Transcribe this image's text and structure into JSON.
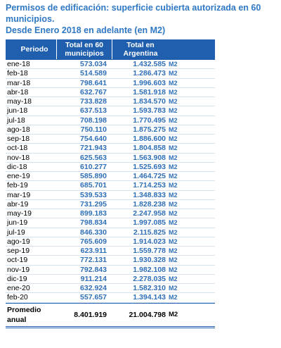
{
  "title": {
    "line1": "Permisos de edificación: superficie cubierta autorizada en 60 municipios.",
    "line2": "Desde Enero 2018 en adelante (en M2)"
  },
  "table": {
    "headers": {
      "periodo": "Periodo",
      "municipios": "Total en 60 municipios",
      "argentina": "Total en Argentina"
    },
    "rows": [
      {
        "periodo": "ene-18",
        "municipios": "573.034",
        "argentina": "1.432.585",
        "unit": "M2"
      },
      {
        "periodo": "feb-18",
        "municipios": "514.589",
        "argentina": "1.286.473",
        "unit": "M2"
      },
      {
        "periodo": "mar-18",
        "municipios": "798.641",
        "argentina": "1.996.603",
        "unit": "M2"
      },
      {
        "periodo": "abr-18",
        "municipios": "632.767",
        "argentina": "1.581.918",
        "unit": "M2"
      },
      {
        "periodo": "may-18",
        "municipios": "733.828",
        "argentina": "1.834.570",
        "unit": "M2"
      },
      {
        "periodo": "jun-18",
        "municipios": "637.513",
        "argentina": "1.593.783",
        "unit": "M2"
      },
      {
        "periodo": "jul-18",
        "municipios": "708.198",
        "argentina": "1.770.495",
        "unit": "M2"
      },
      {
        "periodo": "ago-18",
        "municipios": "750.110",
        "argentina": "1.875.275",
        "unit": "M2"
      },
      {
        "periodo": "sep-18",
        "municipios": "754.640",
        "argentina": "1.886.600",
        "unit": "M2"
      },
      {
        "periodo": "oct-18",
        "municipios": "721.943",
        "argentina": "1.804.858",
        "unit": "M2"
      },
      {
        "periodo": "nov-18",
        "municipios": "625.563",
        "argentina": "1.563.908",
        "unit": "M2"
      },
      {
        "periodo": "dic-18",
        "municipios": "610.277",
        "argentina": "1.525.693",
        "unit": "M2"
      },
      {
        "periodo": "ene-19",
        "municipios": "585.890",
        "argentina": "1.464.725",
        "unit": "M2"
      },
      {
        "periodo": "feb-19",
        "municipios": "685.701",
        "argentina": "1.714.253",
        "unit": "M2"
      },
      {
        "periodo": "mar-19",
        "municipios": "539.533",
        "argentina": "1.348.833",
        "unit": "M2"
      },
      {
        "periodo": "abr-19",
        "municipios": "731.295",
        "argentina": "1.828.238",
        "unit": "M2"
      },
      {
        "periodo": "may-19",
        "municipios": "899.183",
        "argentina": "2.247.958",
        "unit": "M2"
      },
      {
        "periodo": "jun-19",
        "municipios": "798.834",
        "argentina": "1.997.085",
        "unit": "M2"
      },
      {
        "periodo": "jul-19",
        "municipios": "846.330",
        "argentina": "2.115.825",
        "unit": "M2"
      },
      {
        "periodo": "ago-19",
        "municipios": "765.609",
        "argentina": "1.914.023",
        "unit": "M2"
      },
      {
        "periodo": "sep-19",
        "municipios": "623.911",
        "argentina": "1.559.778",
        "unit": "M2"
      },
      {
        "periodo": "oct-19",
        "municipios": "772.131",
        "argentina": "1.930.328",
        "unit": "M2"
      },
      {
        "periodo": "nov-19",
        "municipios": "792.843",
        "argentina": "1.982.108",
        "unit": "M2"
      },
      {
        "periodo": "dic-19",
        "municipios": "911.214",
        "argentina": "2.278.035",
        "unit": "M2"
      },
      {
        "periodo": "ene-20",
        "municipios": "632.924",
        "argentina": "1.582.310",
        "unit": "M2"
      },
      {
        "periodo": "feb-20",
        "municipios": "557.657",
        "argentina": "1.394.143",
        "unit": "M2"
      }
    ],
    "footer": {
      "label": "Promedio anual",
      "municipios": "8.401.919",
      "argentina": "21.004.798",
      "unit": "M2"
    }
  },
  "colors": {
    "title": "#2f78c4",
    "header_bg": "#1f5fae",
    "value_text": "#2f6fb8"
  }
}
